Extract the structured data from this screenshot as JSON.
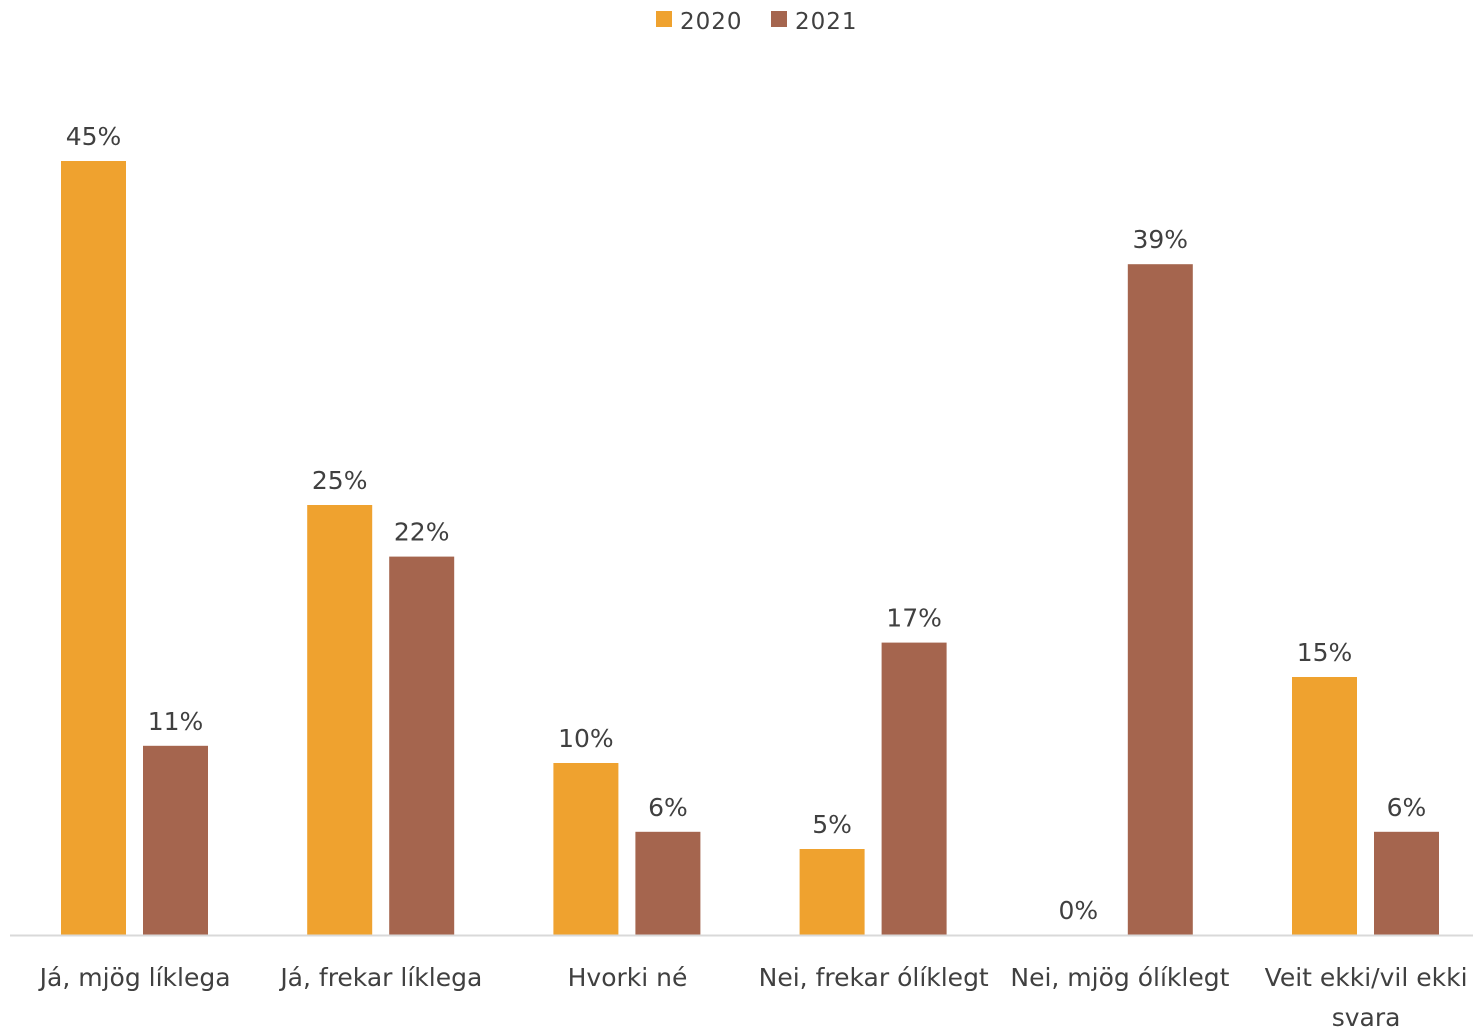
{
  "chart_data": {
    "type": "bar",
    "categories": [
      [
        "Já, mjög líklega"
      ],
      [
        "Já, frekar líklega"
      ],
      [
        "Hvorki né"
      ],
      [
        "Nei, frekar ólíklegt"
      ],
      [
        "Nei, mjög ólíklegt"
      ],
      [
        "Veit ekki/vil ekki",
        "svara"
      ]
    ],
    "series": [
      {
        "name": "2020",
        "color": "#EFA22F",
        "values": [
          45,
          25,
          10,
          5,
          0,
          15
        ],
        "labels": [
          "45%",
          "25%",
          "10%",
          "5%",
          "0%",
          "15%"
        ]
      },
      {
        "name": "2021",
        "color": "#A5654E",
        "values": [
          11,
          22,
          6,
          17,
          39,
          6
        ],
        "labels": [
          "11%",
          "22%",
          "6%",
          "17%",
          "39%",
          "6%"
        ]
      }
    ],
    "ylim": [
      0,
      45
    ],
    "grid": false,
    "legend_position": "top-center",
    "axis_color": "#D9D9D9"
  }
}
